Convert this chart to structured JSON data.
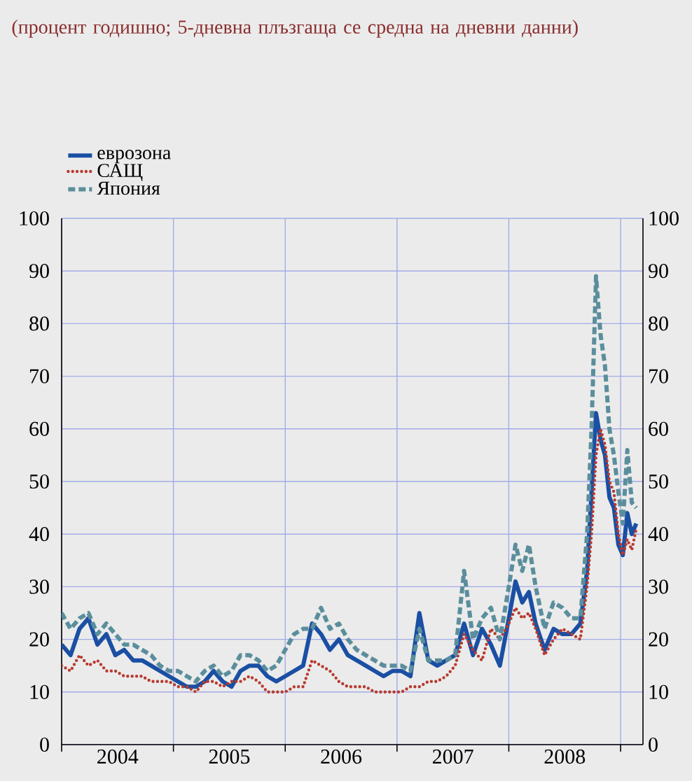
{
  "chart_data": {
    "type": "line",
    "title": "(процент годишно; 5-дневна плъзгаща се средна на дневни данни)",
    "x": [
      2004.0,
      2004.08,
      2004.16,
      2004.24,
      2004.32,
      2004.4,
      2004.48,
      2004.56,
      2004.64,
      2004.72,
      2004.8,
      2004.88,
      2004.96,
      2005.04,
      2005.12,
      2005.2,
      2005.28,
      2005.36,
      2005.44,
      2005.52,
      2005.6,
      2005.68,
      2005.76,
      2005.84,
      2005.92,
      2006.0,
      2006.08,
      2006.16,
      2006.24,
      2006.32,
      2006.4,
      2006.48,
      2006.56,
      2006.64,
      2006.72,
      2006.8,
      2006.88,
      2006.96,
      2007.04,
      2007.12,
      2007.2,
      2007.28,
      2007.36,
      2007.44,
      2007.52,
      2007.6,
      2007.68,
      2007.76,
      2007.84,
      2007.92,
      2008.0,
      2008.06,
      2008.12,
      2008.18,
      2008.24,
      2008.32,
      2008.4,
      2008.48,
      2008.56,
      2008.64,
      2008.7,
      2008.74,
      2008.78,
      2008.82,
      2008.86,
      2008.9,
      2008.94,
      2008.98,
      2009.02,
      2009.06,
      2009.1,
      2009.14
    ],
    "series": [
      {
        "name": "еврозона",
        "color": "#1a4fa3",
        "line_style": "solid",
        "values": [
          19,
          17,
          22,
          24,
          19,
          21,
          17,
          18,
          16,
          16,
          15,
          14,
          13,
          12,
          11,
          11,
          12,
          14,
          12,
          11,
          14,
          15,
          15,
          13,
          12,
          13,
          14,
          15,
          23,
          21,
          18,
          20,
          17,
          16,
          15,
          14,
          13,
          14,
          14,
          13,
          25,
          16,
          15,
          16,
          17,
          23,
          17,
          22,
          19,
          15,
          24,
          31,
          27,
          29,
          23,
          18,
          22,
          21,
          21,
          23,
          33,
          48,
          63,
          58,
          55,
          47,
          45,
          38,
          36,
          44,
          40,
          42
        ]
      },
      {
        "name": "САЩ",
        "color": "#b83a2e",
        "line_style": "dotted",
        "values": [
          15,
          14,
          17,
          15,
          16,
          14,
          14,
          13,
          13,
          13,
          12,
          12,
          12,
          11,
          11,
          10,
          12,
          12,
          11,
          12,
          12,
          13,
          12,
          10,
          10,
          10,
          11,
          11,
          16,
          15,
          14,
          12,
          11,
          11,
          11,
          10,
          10,
          10,
          10,
          11,
          11,
          12,
          12,
          13,
          15,
          21,
          18,
          16,
          22,
          20,
          23,
          26,
          24,
          25,
          22,
          17,
          20,
          22,
          21,
          20,
          30,
          40,
          55,
          60,
          57,
          50,
          48,
          40,
          36,
          39,
          37,
          41
        ]
      },
      {
        "name": "Япония",
        "color": "#5b8e9c",
        "line_style": "dashed",
        "values": [
          25,
          22,
          24,
          25,
          21,
          23,
          21,
          19,
          19,
          18,
          17,
          15,
          14,
          14,
          13,
          12,
          14,
          15,
          13,
          14,
          17,
          17,
          16,
          14,
          15,
          18,
          21,
          22,
          22,
          26,
          22,
          23,
          20,
          18,
          17,
          16,
          15,
          15,
          15,
          14,
          22,
          16,
          16,
          16,
          17,
          33,
          20,
          24,
          26,
          20,
          30,
          38,
          33,
          38,
          30,
          22,
          27,
          26,
          24,
          24,
          40,
          60,
          89,
          78,
          72,
          60,
          55,
          48,
          42,
          56,
          46,
          45
        ]
      }
    ],
    "xlim": [
      2004.0,
      2009.2
    ],
    "xticks": [
      {
        "value": 2004,
        "label": null
      },
      {
        "value": 2004.5,
        "label": "2004"
      },
      {
        "value": 2005,
        "label": null
      },
      {
        "value": 2005.5,
        "label": "2005"
      },
      {
        "value": 2006,
        "label": null
      },
      {
        "value": 2006.5,
        "label": "2006"
      },
      {
        "value": 2007,
        "label": null
      },
      {
        "value": 2007.5,
        "label": "2007"
      },
      {
        "value": 2008,
        "label": null
      },
      {
        "value": 2008.5,
        "label": "2008"
      },
      {
        "value": 2009,
        "label": null
      }
    ],
    "ylim": [
      0,
      100
    ],
    "yticks": [
      0,
      10,
      20,
      30,
      40,
      50,
      60,
      70,
      80,
      90,
      100
    ],
    "y2lim": [
      0,
      100
    ],
    "y2ticks": [
      0,
      10,
      20,
      30,
      40,
      50,
      60,
      70,
      80,
      90,
      100
    ],
    "grid": true,
    "legend": "top left",
    "marker": "none"
  }
}
